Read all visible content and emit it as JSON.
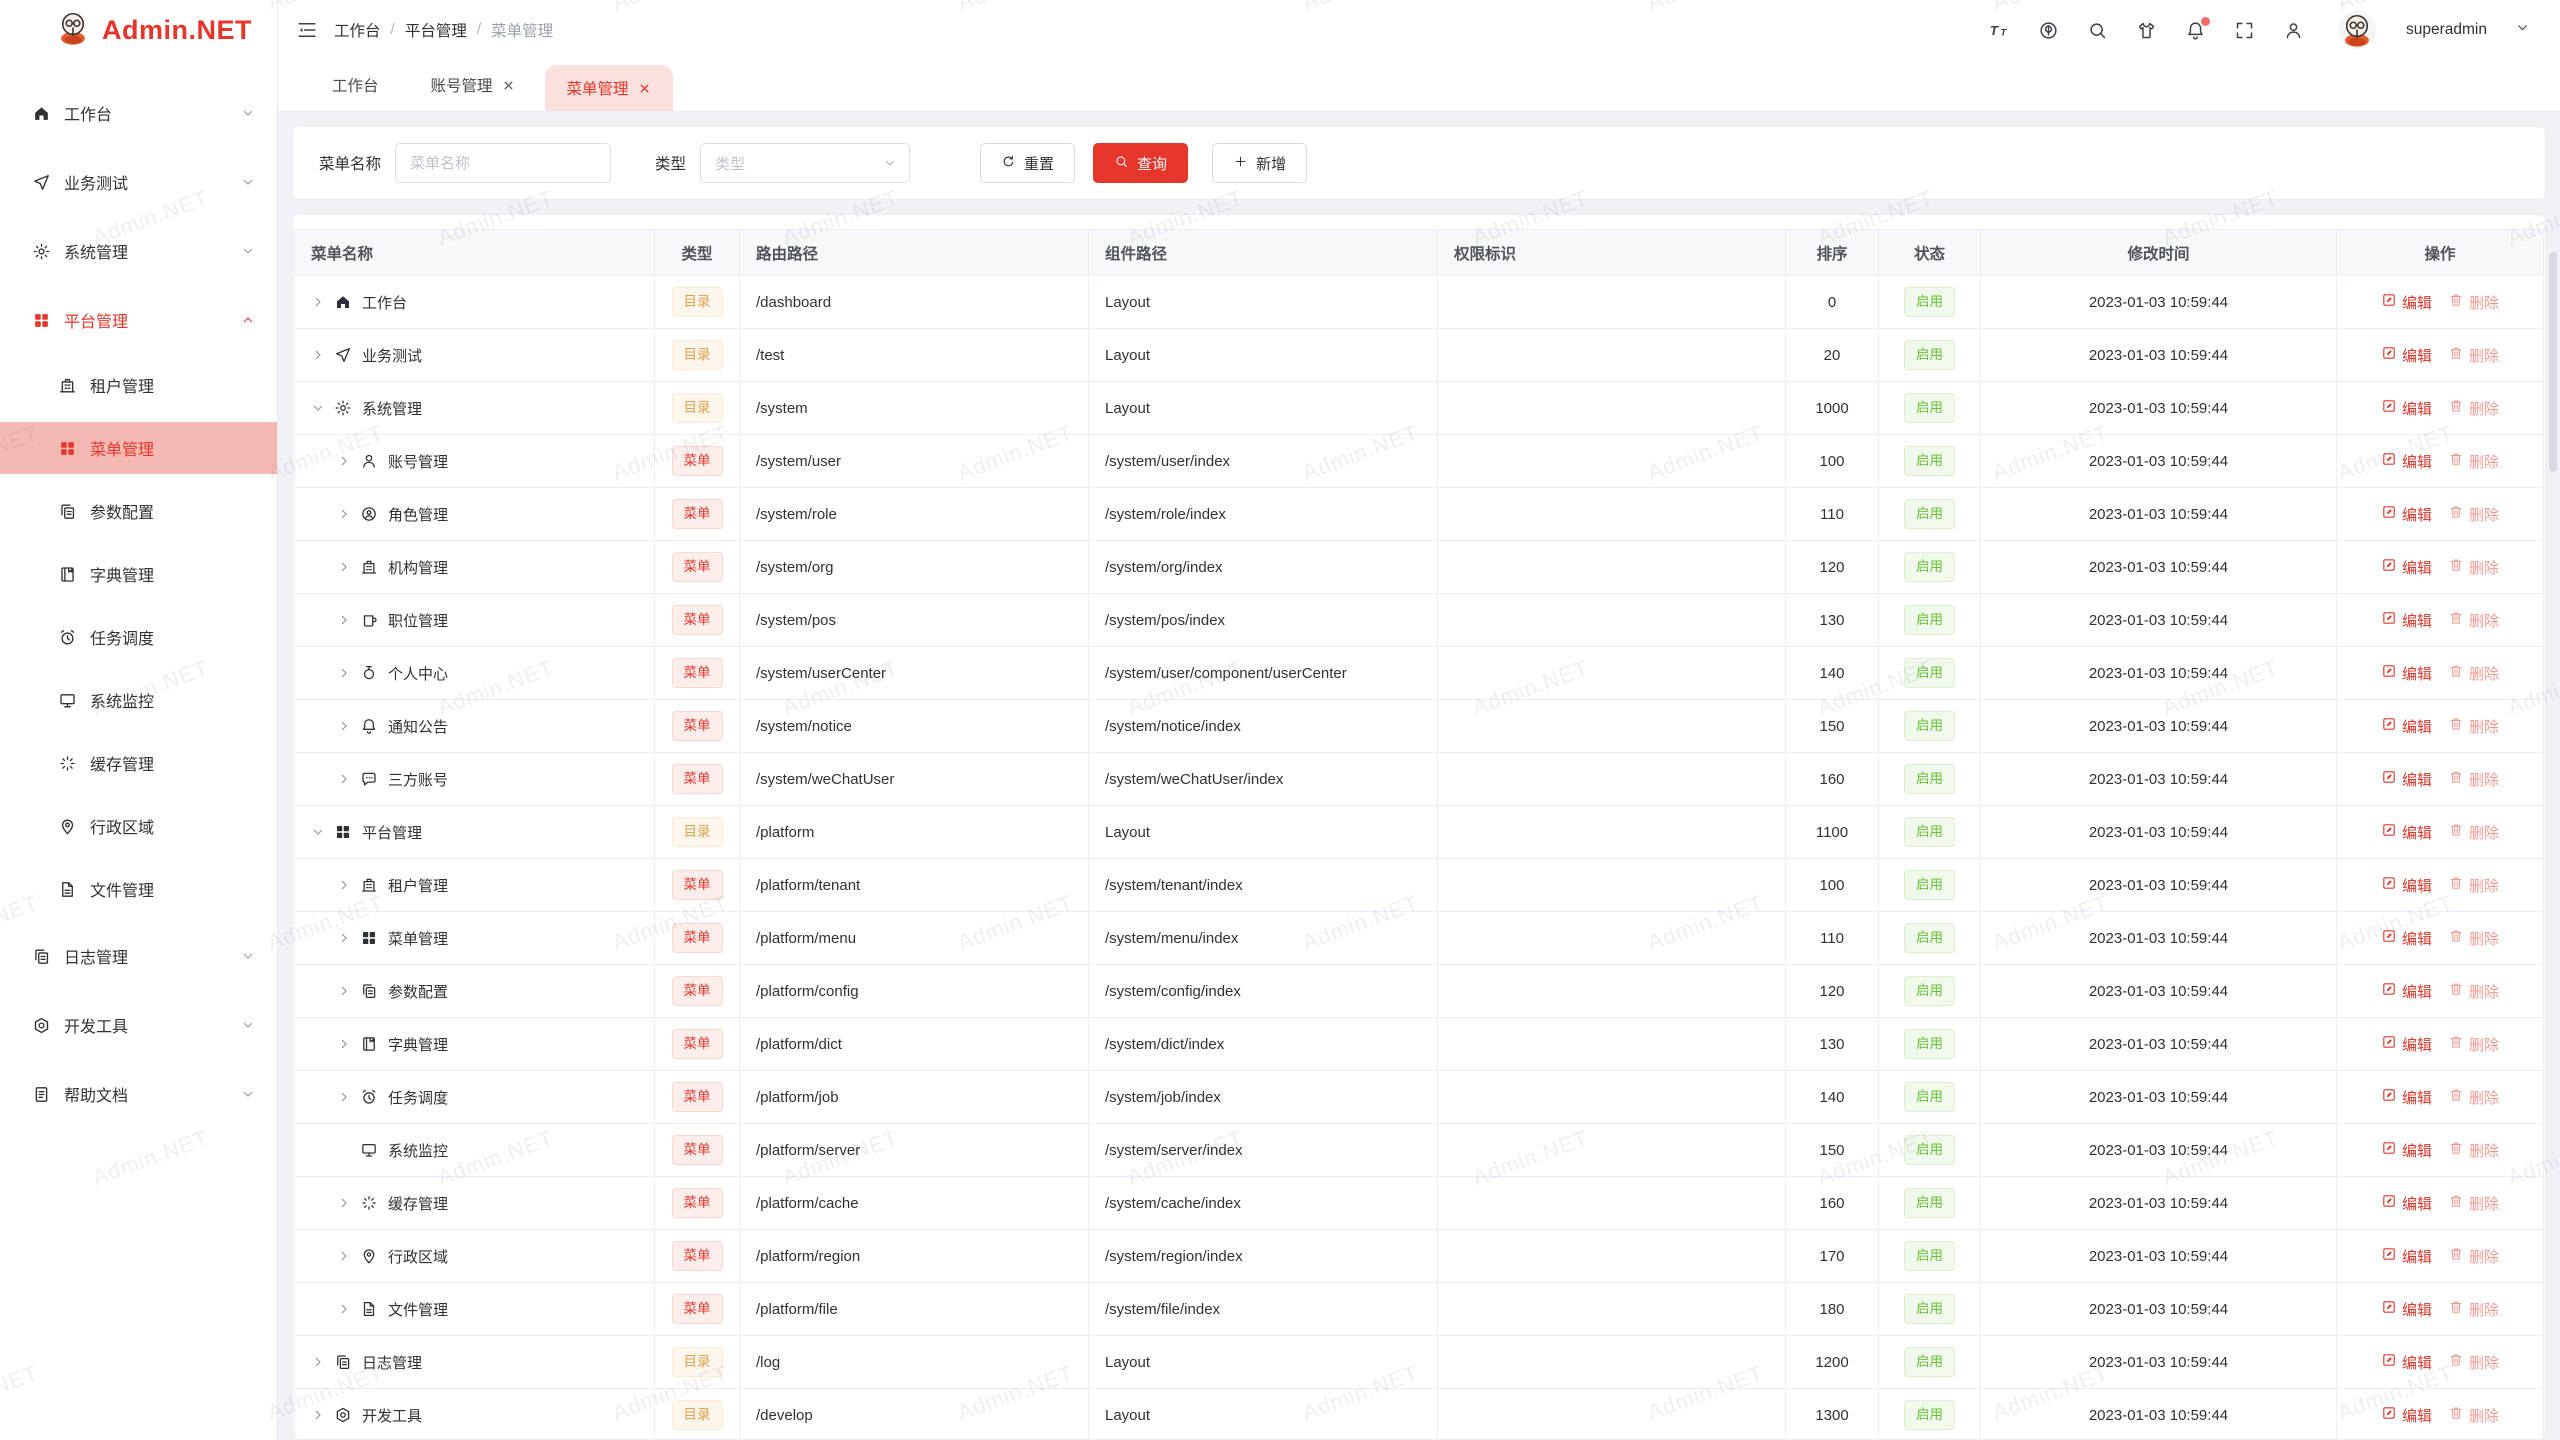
{
  "app": {
    "logo_text": "Admin.NET",
    "watermark": "Admin.NET",
    "primary_color": "#e6352b"
  },
  "header": {
    "breadcrumb": [
      "工作台",
      "平台管理",
      "菜单管理"
    ],
    "icons": [
      "font-size-icon",
      "language-icon",
      "search-icon",
      "theme-icon",
      "notification-icon",
      "fullscreen-icon",
      "profile-icon"
    ],
    "notification_has_badge": true,
    "user": "superadmin"
  },
  "tabs": [
    {
      "label": "工作台",
      "closable": false,
      "active": false
    },
    {
      "label": "账号管理",
      "closable": true,
      "active": false
    },
    {
      "label": "菜单管理",
      "closable": true,
      "active": true
    }
  ],
  "sidebar": {
    "items": [
      {
        "label": "工作台",
        "icon": "home",
        "level": 0,
        "chevron": "down"
      },
      {
        "label": "业务测试",
        "icon": "plane",
        "level": 0,
        "chevron": "down"
      },
      {
        "label": "系统管理",
        "icon": "gear",
        "level": 0,
        "chevron": "down"
      },
      {
        "label": "平台管理",
        "icon": "grid",
        "level": 0,
        "chevron": "up",
        "state": "parent-active"
      },
      {
        "label": "租户管理",
        "icon": "bank",
        "level": 1
      },
      {
        "label": "菜单管理",
        "icon": "grid",
        "level": 1,
        "state": "selected"
      },
      {
        "label": "参数配置",
        "icon": "copydoc",
        "level": 1
      },
      {
        "label": "字典管理",
        "icon": "notebook",
        "level": 1
      },
      {
        "label": "任务调度",
        "icon": "alarm",
        "level": 1
      },
      {
        "label": "系统监控",
        "icon": "monitor",
        "level": 1
      },
      {
        "label": "缓存管理",
        "icon": "loading",
        "level": 1
      },
      {
        "label": "行政区域",
        "icon": "location",
        "level": 1
      },
      {
        "label": "文件管理",
        "icon": "file",
        "level": 1
      },
      {
        "label": "日志管理",
        "icon": "copydoc",
        "level": 0,
        "chevron": "down"
      },
      {
        "label": "开发工具",
        "icon": "setting",
        "level": 0,
        "chevron": "down"
      },
      {
        "label": "帮助文档",
        "icon": "doc",
        "level": 0,
        "chevron": "down"
      }
    ]
  },
  "filter": {
    "name_label": "菜单名称",
    "name_placeholder": "菜单名称",
    "name_value": "",
    "type_label": "类型",
    "type_placeholder": "类型",
    "reset_label": "重置",
    "search_label": "查询",
    "add_label": "新增"
  },
  "table": {
    "columns": [
      "菜单名称",
      "类型",
      "路由路径",
      "组件路径",
      "权限标识",
      "排序",
      "状态",
      "修改时间",
      "操作"
    ],
    "badge_labels": {
      "dir": "目录",
      "menu": "菜单"
    },
    "edit_label": "编辑",
    "delete_label": "删除",
    "rows": [
      {
        "indent": 0,
        "arrow": "right",
        "icon": "home",
        "name": "工作台",
        "type": "dir",
        "route": "/dashboard",
        "component": "Layout",
        "perm": "",
        "sort": 0,
        "status": "启用",
        "time": "2023-01-03 10:59:44"
      },
      {
        "indent": 0,
        "arrow": "right",
        "icon": "plane",
        "name": "业务测试",
        "type": "dir",
        "route": "/test",
        "component": "Layout",
        "perm": "",
        "sort": 20,
        "status": "启用",
        "time": "2023-01-03 10:59:44"
      },
      {
        "indent": 0,
        "arrow": "down",
        "icon": "gear",
        "name": "系统管理",
        "type": "dir",
        "route": "/system",
        "component": "Layout",
        "perm": "",
        "sort": 1000,
        "status": "启用",
        "time": "2023-01-03 10:59:44"
      },
      {
        "indent": 1,
        "arrow": "right",
        "icon": "user",
        "name": "账号管理",
        "type": "menu",
        "route": "/system/user",
        "component": "/system/user/index",
        "perm": "",
        "sort": 100,
        "status": "启用",
        "time": "2023-01-03 10:59:44"
      },
      {
        "indent": 1,
        "arrow": "right",
        "icon": "face",
        "name": "角色管理",
        "type": "menu",
        "route": "/system/role",
        "component": "/system/role/index",
        "perm": "",
        "sort": 110,
        "status": "启用",
        "time": "2023-01-03 10:59:44"
      },
      {
        "indent": 1,
        "arrow": "right",
        "icon": "bank",
        "name": "机构管理",
        "type": "menu",
        "route": "/system/org",
        "component": "/system/org/index",
        "perm": "",
        "sort": 120,
        "status": "启用",
        "time": "2023-01-03 10:59:44"
      },
      {
        "indent": 1,
        "arrow": "right",
        "icon": "mug",
        "name": "职位管理",
        "type": "menu",
        "route": "/system/pos",
        "component": "/system/pos/index",
        "perm": "",
        "sort": 130,
        "status": "启用",
        "time": "2023-01-03 10:59:44"
      },
      {
        "indent": 1,
        "arrow": "right",
        "icon": "medal",
        "name": "个人中心",
        "type": "menu",
        "route": "/system/userCenter",
        "component": "/system/user/component/userCenter",
        "perm": "",
        "sort": 140,
        "status": "启用",
        "time": "2023-01-03 10:59:44"
      },
      {
        "indent": 1,
        "arrow": "right",
        "icon": "bell",
        "name": "通知公告",
        "type": "menu",
        "route": "/system/notice",
        "component": "/system/notice/index",
        "perm": "",
        "sort": 150,
        "status": "启用",
        "time": "2023-01-03 10:59:44"
      },
      {
        "indent": 1,
        "arrow": "right",
        "icon": "chat",
        "name": "三方账号",
        "type": "menu",
        "route": "/system/weChatUser",
        "component": "/system/weChatUser/index",
        "perm": "",
        "sort": 160,
        "status": "启用",
        "time": "2023-01-03 10:59:44"
      },
      {
        "indent": 0,
        "arrow": "down",
        "icon": "grid",
        "name": "平台管理",
        "type": "dir",
        "route": "/platform",
        "component": "Layout",
        "perm": "",
        "sort": 1100,
        "status": "启用",
        "time": "2023-01-03 10:59:44"
      },
      {
        "indent": 1,
        "arrow": "right",
        "icon": "bank",
        "name": "租户管理",
        "type": "menu",
        "route": "/platform/tenant",
        "component": "/system/tenant/index",
        "perm": "",
        "sort": 100,
        "status": "启用",
        "time": "2023-01-03 10:59:44"
      },
      {
        "indent": 1,
        "arrow": "right",
        "icon": "grid",
        "name": "菜单管理",
        "type": "menu",
        "route": "/platform/menu",
        "component": "/system/menu/index",
        "perm": "",
        "sort": 110,
        "status": "启用",
        "time": "2023-01-03 10:59:44"
      },
      {
        "indent": 1,
        "arrow": "right",
        "icon": "copydoc",
        "name": "参数配置",
        "type": "menu",
        "route": "/platform/config",
        "component": "/system/config/index",
        "perm": "",
        "sort": 120,
        "status": "启用",
        "time": "2023-01-03 10:59:44"
      },
      {
        "indent": 1,
        "arrow": "right",
        "icon": "notebook",
        "name": "字典管理",
        "type": "menu",
        "route": "/platform/dict",
        "component": "/system/dict/index",
        "perm": "",
        "sort": 130,
        "status": "启用",
        "time": "2023-01-03 10:59:44"
      },
      {
        "indent": 1,
        "arrow": "right",
        "icon": "alarm",
        "name": "任务调度",
        "type": "menu",
        "route": "/platform/job",
        "component": "/system/job/index",
        "perm": "",
        "sort": 140,
        "status": "启用",
        "time": "2023-01-03 10:59:44"
      },
      {
        "indent": 1,
        "arrow": "none",
        "icon": "monitor",
        "name": "系统监控",
        "type": "menu",
        "route": "/platform/server",
        "component": "/system/server/index",
        "perm": "",
        "sort": 150,
        "status": "启用",
        "time": "2023-01-03 10:59:44"
      },
      {
        "indent": 1,
        "arrow": "right",
        "icon": "loading",
        "name": "缓存管理",
        "type": "menu",
        "route": "/platform/cache",
        "component": "/system/cache/index",
        "perm": "",
        "sort": 160,
        "status": "启用",
        "time": "2023-01-03 10:59:44"
      },
      {
        "indent": 1,
        "arrow": "right",
        "icon": "location",
        "name": "行政区域",
        "type": "menu",
        "route": "/platform/region",
        "component": "/system/region/index",
        "perm": "",
        "sort": 170,
        "status": "启用",
        "time": "2023-01-03 10:59:44"
      },
      {
        "indent": 1,
        "arrow": "right",
        "icon": "file",
        "name": "文件管理",
        "type": "menu",
        "route": "/platform/file",
        "component": "/system/file/index",
        "perm": "",
        "sort": 180,
        "status": "启用",
        "time": "2023-01-03 10:59:44"
      },
      {
        "indent": 0,
        "arrow": "right",
        "icon": "copydoc",
        "name": "日志管理",
        "type": "dir",
        "route": "/log",
        "component": "Layout",
        "perm": "",
        "sort": 1200,
        "status": "启用",
        "time": "2023-01-03 10:59:44"
      },
      {
        "indent": 0,
        "arrow": "right",
        "icon": "setting",
        "name": "开发工具",
        "type": "dir",
        "route": "/develop",
        "component": "Layout",
        "perm": "",
        "sort": 1300,
        "status": "启用",
        "time": "2023-01-03 10:59:44"
      }
    ]
  }
}
